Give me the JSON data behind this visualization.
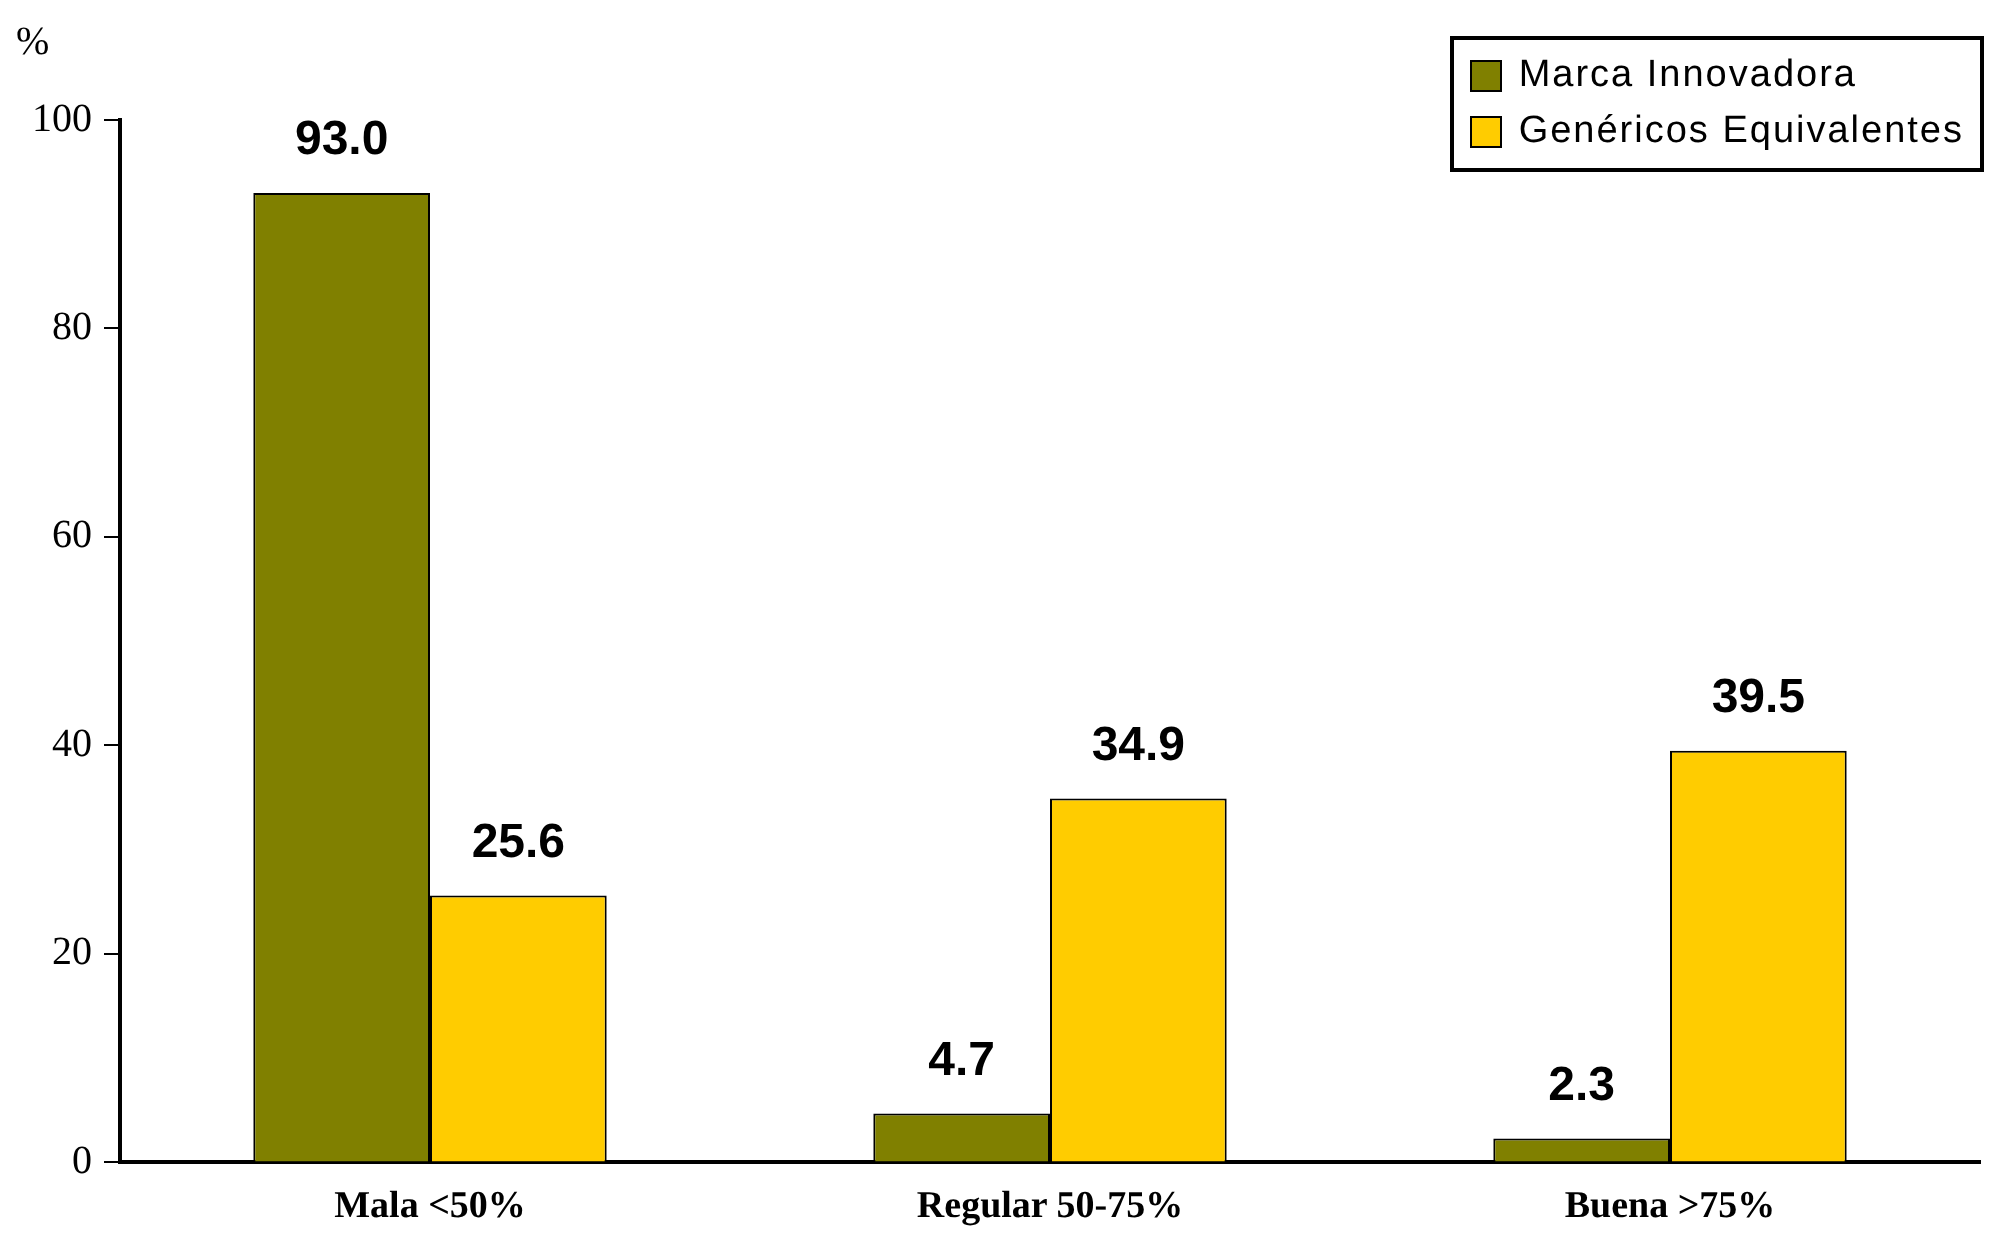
{
  "chart_data": {
    "type": "bar",
    "ylabel": "%",
    "categories": [
      "Mala <50%",
      "Regular 50-75%",
      "Buena >75%"
    ],
    "series": [
      {
        "name": "Marca Innovadora",
        "color": "#808000",
        "values": [
          93.0,
          4.7,
          2.3
        ],
        "value_labels": [
          "93.0",
          "4.7",
          "2.3"
        ]
      },
      {
        "name": "Genéricos Equivalentes",
        "color": "#ffcc00",
        "values": [
          25.6,
          34.9,
          39.5
        ],
        "value_labels": [
          "25.6",
          "34.9",
          "39.5"
        ]
      }
    ],
    "ylim": [
      0,
      100
    ],
    "yticks": [
      0,
      20,
      40,
      60,
      80,
      100
    ],
    "grid": false,
    "legend": "top right"
  }
}
